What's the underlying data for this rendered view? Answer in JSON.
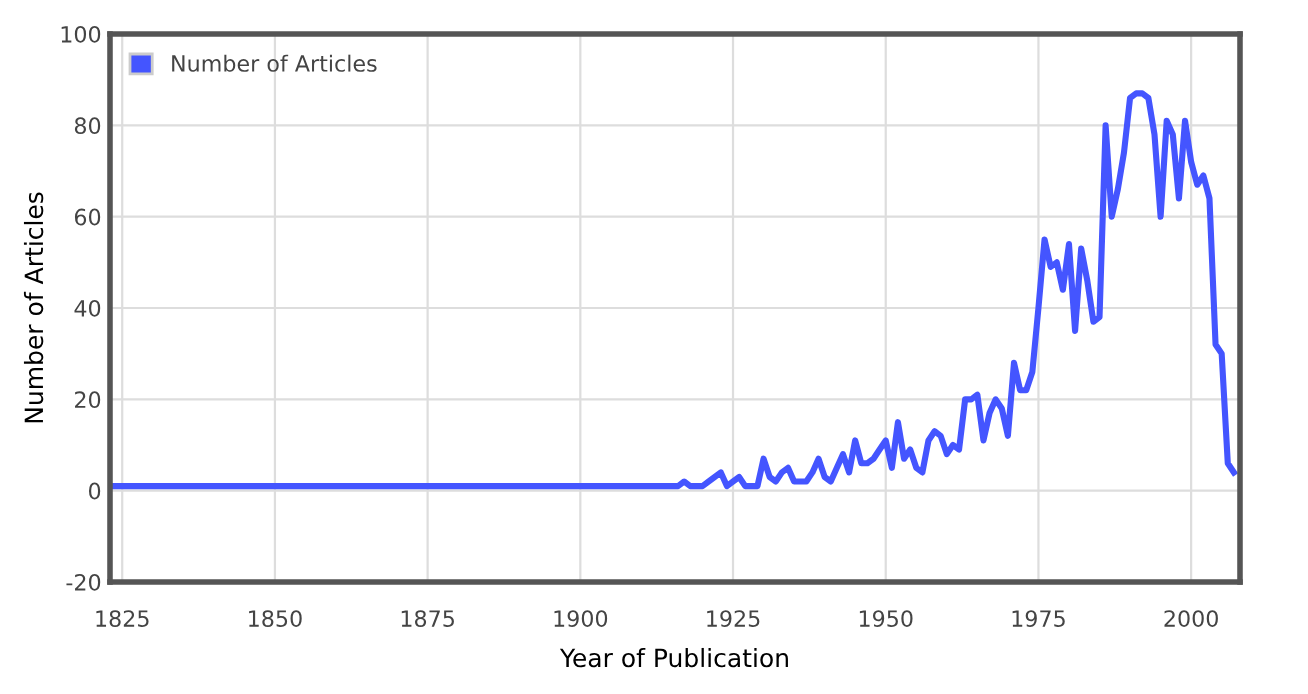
{
  "chart_data": {
    "type": "line",
    "xlabel": "Year of Publication",
    "ylabel": "Number of Articles",
    "x": [
      1823,
      1915,
      1916,
      1917,
      1918,
      1919,
      1920,
      1921,
      1922,
      1923,
      1924,
      1925,
      1926,
      1927,
      1928,
      1929,
      1930,
      1931,
      1932,
      1933,
      1934,
      1935,
      1936,
      1937,
      1938,
      1939,
      1940,
      1941,
      1942,
      1943,
      1944,
      1945,
      1946,
      1947,
      1948,
      1949,
      1950,
      1951,
      1952,
      1953,
      1954,
      1955,
      1956,
      1957,
      1958,
      1959,
      1960,
      1961,
      1962,
      1963,
      1964,
      1965,
      1966,
      1967,
      1968,
      1969,
      1970,
      1971,
      1972,
      1973,
      1974,
      1975,
      1976,
      1977,
      1978,
      1979,
      1980,
      1981,
      1982,
      1983,
      1984,
      1985,
      1986,
      1987,
      1988,
      1989,
      1990,
      1991,
      1992,
      1993,
      1994,
      1995,
      1996,
      1997,
      1998,
      1999,
      2000,
      2001,
      2002,
      2003,
      2004,
      2005,
      2006,
      2007
    ],
    "series": [
      {
        "name": "Number of Articles",
        "color": "#4455ff",
        "values": [
          1,
          1,
          1,
          2,
          1,
          1,
          1,
          2,
          3,
          4,
          1,
          2,
          3,
          1,
          1,
          1,
          7,
          3,
          2,
          4,
          5,
          2,
          2,
          2,
          4,
          7,
          3,
          2,
          5,
          8,
          4,
          11,
          6,
          6,
          7,
          9,
          11,
          5,
          15,
          7,
          9,
          5,
          4,
          11,
          13,
          12,
          8,
          10,
          9,
          20,
          20,
          21,
          11,
          17,
          20,
          18,
          12,
          28,
          22,
          22,
          26,
          40,
          55,
          49,
          50,
          44,
          54,
          35,
          53,
          46,
          37,
          38,
          80,
          60,
          66,
          74,
          86,
          87,
          87,
          86,
          78,
          60,
          81,
          78,
          64,
          81,
          72,
          67,
          69,
          64,
          32,
          30,
          6,
          4
        ]
      }
    ],
    "xlim": [
      1823,
      2008
    ],
    "xticks": [
      1825,
      1850,
      1875,
      1900,
      1925,
      1950,
      1975,
      2000
    ],
    "ylim": [
      -20,
      100
    ],
    "yticks": [
      -20,
      0,
      20,
      40,
      60,
      80,
      100
    ],
    "grid": true,
    "legend": "top left",
    "marker": "none",
    "line_style": "solid"
  }
}
